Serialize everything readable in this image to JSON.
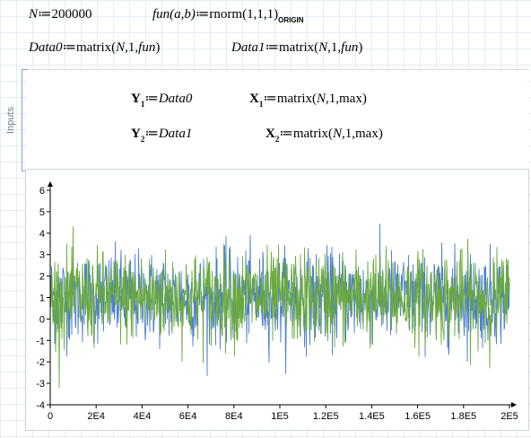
{
  "worksheet": {
    "line1": {
      "n_def": {
        "var": "N",
        "assign": "≔",
        "value": "200000"
      },
      "fun_def": {
        "name": "fun",
        "params": "(a,b)",
        "assign": "≔",
        "func": "rnorm",
        "args": "(1,1,1)",
        "subscript": "ORIGIN"
      }
    },
    "line2": {
      "data0_def": {
        "var": "Data0",
        "assign": "≔",
        "func": "matrix",
        "args_pre": "(",
        "arg1": "N",
        "arg_mid": ",1,",
        "arg3": "fun",
        "args_post": ")"
      },
      "data1_def": {
        "var": "Data1",
        "assign": "≔",
        "func": "matrix",
        "args_pre": "(",
        "arg1": "N",
        "arg_mid": ",1,",
        "arg3": "fun",
        "args_post": ")"
      }
    },
    "area": {
      "label": "Inputs",
      "y1": {
        "var": "Y",
        "sub": "1",
        "assign": "≔",
        "value": "Data0"
      },
      "x1": {
        "var": "X",
        "sub": "1",
        "assign": "≔",
        "func": "matrix",
        "args_pre": "(",
        "arg1": "N",
        "args_post": ",1,max)"
      },
      "y2": {
        "var": "Y",
        "sub": "2",
        "assign": "≔",
        "value": "Data1"
      },
      "x2": {
        "var": "X",
        "sub": "2",
        "assign": "≔",
        "func": "matrix",
        "args_pre": "(",
        "arg1": "N",
        "args_post": ",1,max)"
      }
    }
  },
  "chart_data": {
    "type": "line",
    "x_range": [
      0,
      200000
    ],
    "ylim": [
      -4,
      6
    ],
    "x_ticks": [
      "0",
      "2E4",
      "4E4",
      "6E4",
      "8E4",
      "1E5",
      "1.2E5",
      "1.4E5",
      "1.6E5",
      "1.8E5",
      "2E5"
    ],
    "y_ticks": [
      "-4",
      "-3",
      "-2",
      "-1",
      "0",
      "1",
      "2",
      "3",
      "4",
      "5",
      "6"
    ],
    "grid": false,
    "series": [
      {
        "values_summary": "200000 samples of rnorm(1,1,1): normally distributed around 1, range approximately -3.8 to 5.5",
        "color": "#4d7fd0"
      },
      {
        "values_summary": "200000 samples of rnorm(1,1,1): normally distributed around 1, range approximately -3.6 to 5.4",
        "color": "#6aaa3a"
      }
    ]
  }
}
